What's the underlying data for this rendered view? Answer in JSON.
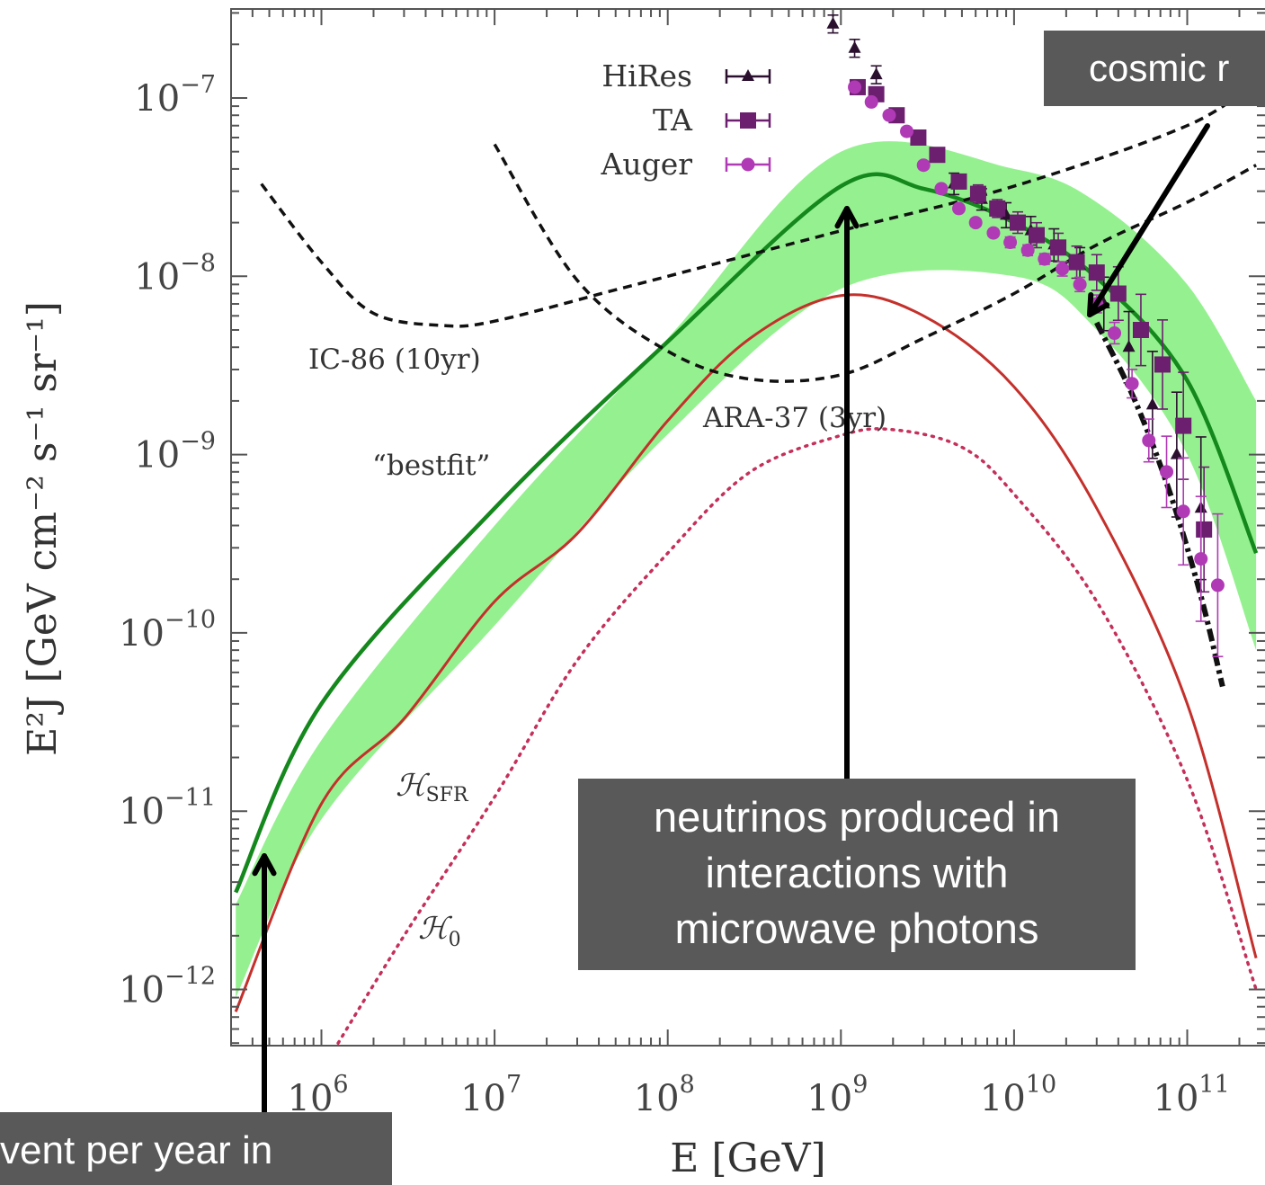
{
  "chart_data": {
    "type": "line",
    "xlabel": "E [GeV]",
    "ylabel": "E²J [GeV cm⁻² s⁻¹ sr⁻¹]",
    "x_scale": "log",
    "y_scale": "log",
    "xlim": [
      320000.0,
      250000000000.0
    ],
    "ylim": [
      5.2e-13,
      3e-07
    ],
    "grid": false,
    "x_ticks": [
      {
        "base": "10",
        "exp": "6",
        "value": 1000000.0
      },
      {
        "base": "10",
        "exp": "7",
        "value": 10000000.0
      },
      {
        "base": "10",
        "exp": "8",
        "value": 100000000.0
      },
      {
        "base": "10",
        "exp": "9",
        "value": 1000000000.0
      },
      {
        "base": "10",
        "exp": "10",
        "value": 10000000000.0
      },
      {
        "base": "10",
        "exp": "11",
        "value": 100000000000.0
      }
    ],
    "y_ticks": [
      {
        "base": "10",
        "exp": "−7",
        "value": 1e-07
      },
      {
        "base": "10",
        "exp": "−8",
        "value": 1e-08
      },
      {
        "base": "10",
        "exp": "−9",
        "value": 1e-09
      },
      {
        "base": "10",
        "exp": "−10",
        "value": 1e-10
      },
      {
        "base": "10",
        "exp": "−11",
        "value": 1e-11
      },
      {
        "base": "10",
        "exp": "−12",
        "value": 1e-12
      }
    ],
    "annotations": {
      "ic86": "IC-86 (10yr)",
      "ara37": "ARA-37 (3yr)",
      "bestfit": "“bestfit”",
      "hsfr_main": "ℋ",
      "hsfr_sub": "SFR",
      "h0_main": "ℋ",
      "h0_sub": "0"
    },
    "series": [
      {
        "name": "HiRes",
        "style": "markers-triangle",
        "color": "#2a0f2e",
        "x": [
          900000000.0,
          1200000000.0,
          1600000000.0,
          4500000000.0,
          6500000000.0,
          9000000000.0,
          12500000000.0,
          17000000000.0,
          24000000000.0,
          33000000000.0,
          46000000000.0,
          63000000000.0,
          87000000000.0,
          120000000000.0
        ],
        "y": [
          2.6e-07,
          1.9e-07,
          1.35e-07,
          3.3e-08,
          2.7e-08,
          2.2e-08,
          1.8e-08,
          1.5e-08,
          1.15e-08,
          7e-09,
          4e-09,
          1.9e-09,
          1e-09,
          5e-10
        ],
        "err_lo": [
          0.05,
          0.05,
          0.05,
          0.06,
          0.06,
          0.07,
          0.08,
          0.09,
          0.1,
          0.15,
          0.2,
          0.3,
          0.35,
          0.4
        ],
        "err_hi": [
          0.05,
          0.05,
          0.05,
          0.06,
          0.06,
          0.07,
          0.08,
          0.09,
          0.1,
          0.15,
          0.2,
          0.3,
          0.35,
          0.4
        ]
      },
      {
        "name": "TA",
        "style": "markers-square",
        "color": "#6b1f6e",
        "x": [
          1250000000.0,
          1600000000.0,
          2100000000.0,
          2800000000.0,
          3600000000.0,
          4800000000.0,
          6200000000.0,
          8000000000.0,
          10500000000.0,
          13500000000.0,
          18000000000.0,
          23000000000.0,
          30000000000.0,
          40000000000.0,
          54000000000.0,
          72000000000.0,
          95000000000.0,
          125000000000.0
        ],
        "y": [
          1.15e-07,
          1.05e-07,
          8e-08,
          6e-08,
          4.8e-08,
          3.4e-08,
          2.9e-08,
          2.4e-08,
          2e-08,
          1.7e-08,
          1.45e-08,
          1.2e-08,
          1.05e-08,
          8e-09,
          5e-09,
          3.2e-09,
          1.45e-09,
          3.8e-10
        ],
        "err_lo": [
          0.03,
          0.03,
          0.03,
          0.03,
          0.03,
          0.04,
          0.05,
          0.05,
          0.06,
          0.07,
          0.08,
          0.09,
          0.1,
          0.15,
          0.2,
          0.25,
          0.3,
          0.35
        ],
        "err_hi": [
          0.03,
          0.03,
          0.03,
          0.03,
          0.03,
          0.04,
          0.05,
          0.05,
          0.06,
          0.07,
          0.08,
          0.09,
          0.1,
          0.15,
          0.2,
          0.25,
          0.3,
          0.35
        ]
      },
      {
        "name": "Auger",
        "style": "markers-circle",
        "color": "#b03ab5",
        "x": [
          1200000000.0,
          1500000000.0,
          1900000000.0,
          2400000000.0,
          3000000000.0,
          3800000000.0,
          4800000000.0,
          6000000000.0,
          7600000000.0,
          9500000000.0,
          12000000000.0,
          15000000000.0,
          19000000000.0,
          24000000000.0,
          30000000000.0,
          38000000000.0,
          48000000000.0,
          60000000000.0,
          76000000000.0,
          95000000000.0,
          120000000000.0,
          150000000000.0
        ],
        "y": [
          1.15e-07,
          9.5e-08,
          8e-08,
          6.5e-08,
          4.2e-08,
          3.1e-08,
          2.4e-08,
          2e-08,
          1.75e-08,
          1.55e-08,
          1.4e-08,
          1.25e-08,
          1.1e-08,
          9e-09,
          7e-09,
          4.8e-09,
          2.5e-09,
          1.2e-09,
          8e-10,
          4.8e-10,
          2.6e-10,
          1.85e-10
        ],
        "err_lo": [
          0.02,
          0.02,
          0.02,
          0.02,
          0.02,
          0.02,
          0.02,
          0.02,
          0.02,
          0.03,
          0.03,
          0.03,
          0.04,
          0.04,
          0.05,
          0.06,
          0.08,
          0.12,
          0.2,
          0.3,
          0.35,
          0.4
        ],
        "err_hi": [
          0.02,
          0.02,
          0.02,
          0.02,
          0.02,
          0.02,
          0.02,
          0.02,
          0.02,
          0.03,
          0.03,
          0.03,
          0.04,
          0.04,
          0.05,
          0.06,
          0.08,
          0.12,
          0.2,
          0.3,
          0.35,
          0.4
        ]
      },
      {
        "style": "band",
        "color": "#8ff08a",
        "x": [
          320000.0,
          1000000.0,
          10000000.0,
          100000000.0,
          1000000000.0,
          10000000000.0,
          30000000000.0,
          100000000000.0,
          250000000000.0
        ],
        "y_low": [
          9e-13,
          9e-12,
          1.1e-10,
          1.3e-09,
          8.5e-09,
          1e-08,
          5e-09,
          1e-09,
          8e-11
        ],
        "y_high": [
          3e-12,
          2.5e-11,
          4e-10,
          4.5e-09,
          5e-08,
          4e-08,
          2.6e-08,
          9e-09,
          2e-09
        ]
      },
      {
        "style": "solid",
        "color": "#14881c",
        "x": [
          320000.0,
          1000000.0,
          10000000.0,
          100000000.0,
          1000000000.0,
          3000000000.0,
          10000000000.0,
          30000000000.0,
          100000000000.0,
          250000000000.0
        ],
        "y": [
          3.5e-12,
          4e-11,
          5e-10,
          4.3e-09,
          3.2e-08,
          3.1e-08,
          2e-08,
          9.8e-09,
          2.6e-09,
          2.8e-10
        ]
      },
      {
        "style": "solid",
        "color": "#c4302b",
        "x": [
          320000.0,
          1000000.0,
          3000000.0,
          10000000.0,
          30000000.0,
          100000000.0,
          300000000.0,
          1000000000.0,
          3000000000.0,
          10000000000.0,
          30000000000.0,
          100000000000.0,
          250000000000.0
        ],
        "y": [
          7.5e-13,
          1.1e-11,
          3.3e-11,
          1.5e-10,
          3.6e-10,
          1.55e-09,
          4.5e-09,
          7.8e-09,
          6e-09,
          2.4e-09,
          5e-10,
          4e-11,
          1.5e-12
        ]
      },
      {
        "style": "dotted",
        "color": "#c4305a",
        "x": [
          1000000.0,
          3000000.0,
          10000000.0,
          30000000.0,
          100000000.0,
          300000000.0,
          1000000000.0,
          2000000000.0,
          5000000000.0,
          10000000000.0,
          30000000000.0,
          100000000000.0,
          250000000000.0
        ],
        "y": [
          3.5e-13,
          2e-12,
          1.2e-11,
          7e-11,
          2.8e-10,
          8e-10,
          1.28e-09,
          1.38e-09,
          1.1e-09,
          6e-10,
          1.5e-10,
          1.5e-11,
          1e-12
        ]
      },
      {
        "style": "dashed",
        "color": "#111111",
        "x": [
          450000.0,
          1000000.0,
          2000000.0,
          5000000.0,
          10000000.0,
          50000000.0,
          100000000.0,
          1000000000.0,
          10000000000.0,
          100000000000.0,
          250000000000.0
        ],
        "y": [
          3.3e-08,
          1.2e-08,
          6.2e-09,
          5.3e-09,
          5.6e-09,
          8.4e-09,
          1e-08,
          1.8e-08,
          3.2e-08,
          7e-08,
          1.25e-07
        ]
      },
      {
        "style": "dashed",
        "color": "#111111",
        "x": [
          10000000.0,
          30000000.0,
          100000000.0,
          300000000.0,
          1000000000.0,
          3000000000.0,
          10000000000.0,
          30000000000.0,
          100000000000.0,
          250000000000.0
        ],
        "y": [
          5.5e-08,
          9.5e-09,
          3.8e-09,
          2.65e-09,
          2.8e-09,
          4.5e-09,
          8e-09,
          1.5e-08,
          2.6e-08,
          4.2e-08
        ]
      },
      {
        "style": "dash-dot",
        "color": "#111111",
        "x": [
          30000000000.0,
          50000000000.0,
          80000000000.0,
          120000000000.0,
          160000000000.0
        ],
        "y": [
          5.5e-09,
          2e-09,
          6e-10,
          1.6e-10,
          5e-11
        ]
      }
    ]
  },
  "callouts": {
    "top_right": "cosmic r",
    "middle": [
      "neutrinos produced in",
      "interactions with",
      "microwave photons"
    ],
    "bottom_left": "vent per year in"
  },
  "arrow_color": "#000000",
  "callout_color": "#595959"
}
